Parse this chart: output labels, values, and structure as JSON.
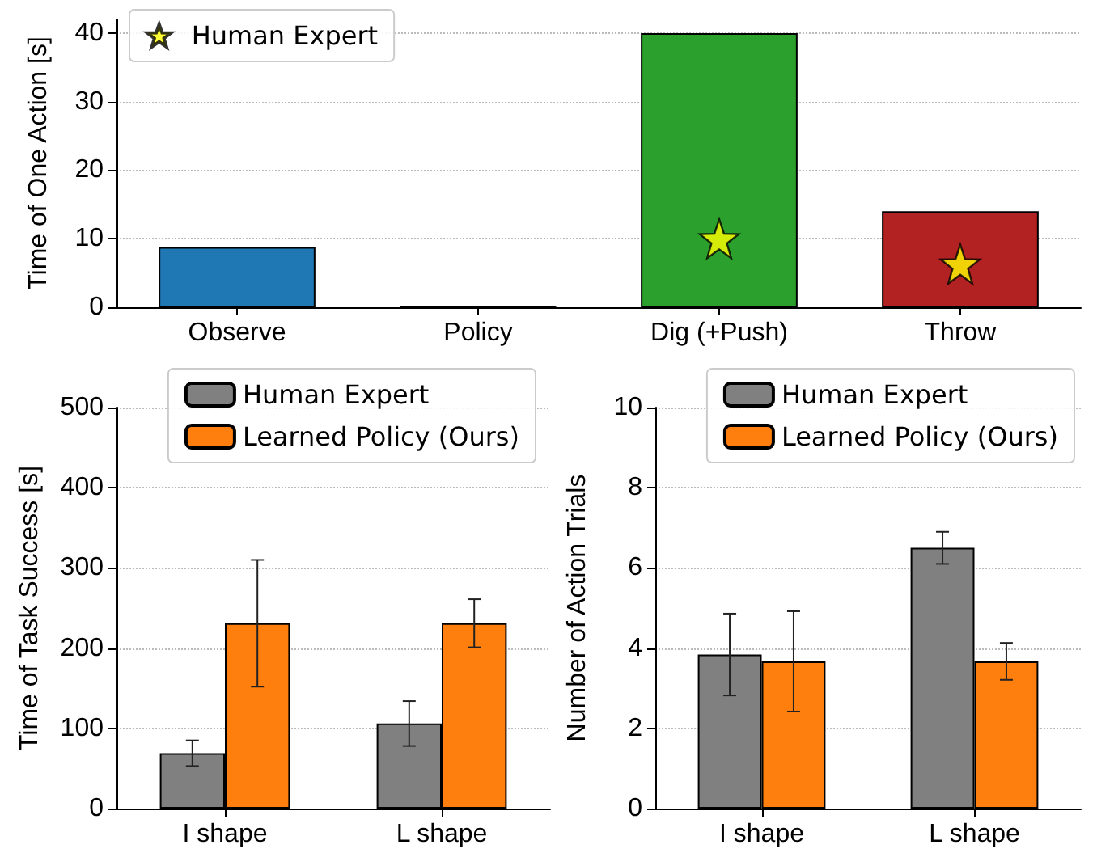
{
  "chart_data": [
    {
      "type": "bar",
      "ylabel": "Time of One Action [s]",
      "categories": [
        "Observe",
        "Policy",
        "Dig (+Push)",
        "Throw"
      ],
      "ylim": [
        0,
        42
      ],
      "yticks": [
        0,
        10,
        20,
        30,
        40
      ],
      "grid": "y",
      "legend": "top left",
      "series": [
        {
          "values": [
            8.8,
            0.1,
            40,
            14
          ],
          "colors": [
            "#1f77b4",
            "#1f77b4",
            "#2ca02c",
            "#b22222"
          ]
        },
        {
          "type": "scatter",
          "name": "Human Expert",
          "color": "#ffff00",
          "marker": "star",
          "x": [
            "Dig (+Push)",
            "Throw"
          ],
          "values": [
            10,
            6.3
          ]
        }
      ]
    },
    {
      "type": "bar",
      "ylabel": "Time of Task Success [s]",
      "categories": [
        "I shape",
        "L shape"
      ],
      "ylim": [
        0,
        500
      ],
      "yticks": [
        0,
        100,
        200,
        300,
        400,
        500
      ],
      "grid": "y",
      "legend": "top right",
      "series": [
        {
          "name": "Human Expert",
          "color": "#808080",
          "values": [
            69,
            106
          ],
          "errors": [
            16,
            28
          ]
        },
        {
          "name": "Learned Policy (Ours)",
          "color": "#ff7f0e",
          "values": [
            231,
            231
          ],
          "errors": [
            79,
            30
          ]
        }
      ]
    },
    {
      "type": "bar",
      "ylabel": "Number of Action Trials",
      "categories": [
        "I shape",
        "L shape"
      ],
      "ylim": [
        0,
        10
      ],
      "yticks": [
        0,
        2,
        4,
        6,
        8,
        10
      ],
      "grid": "y",
      "legend": "top right",
      "series": [
        {
          "name": "Human Expert",
          "color": "#808080",
          "values": [
            3.84,
            6.5
          ],
          "errors": [
            1.02,
            0.4
          ]
        },
        {
          "name": "Learned Policy (Ours)",
          "color": "#ff7f0e",
          "values": [
            3.67,
            3.67
          ],
          "errors": [
            1.25,
            0.46
          ]
        }
      ]
    }
  ]
}
